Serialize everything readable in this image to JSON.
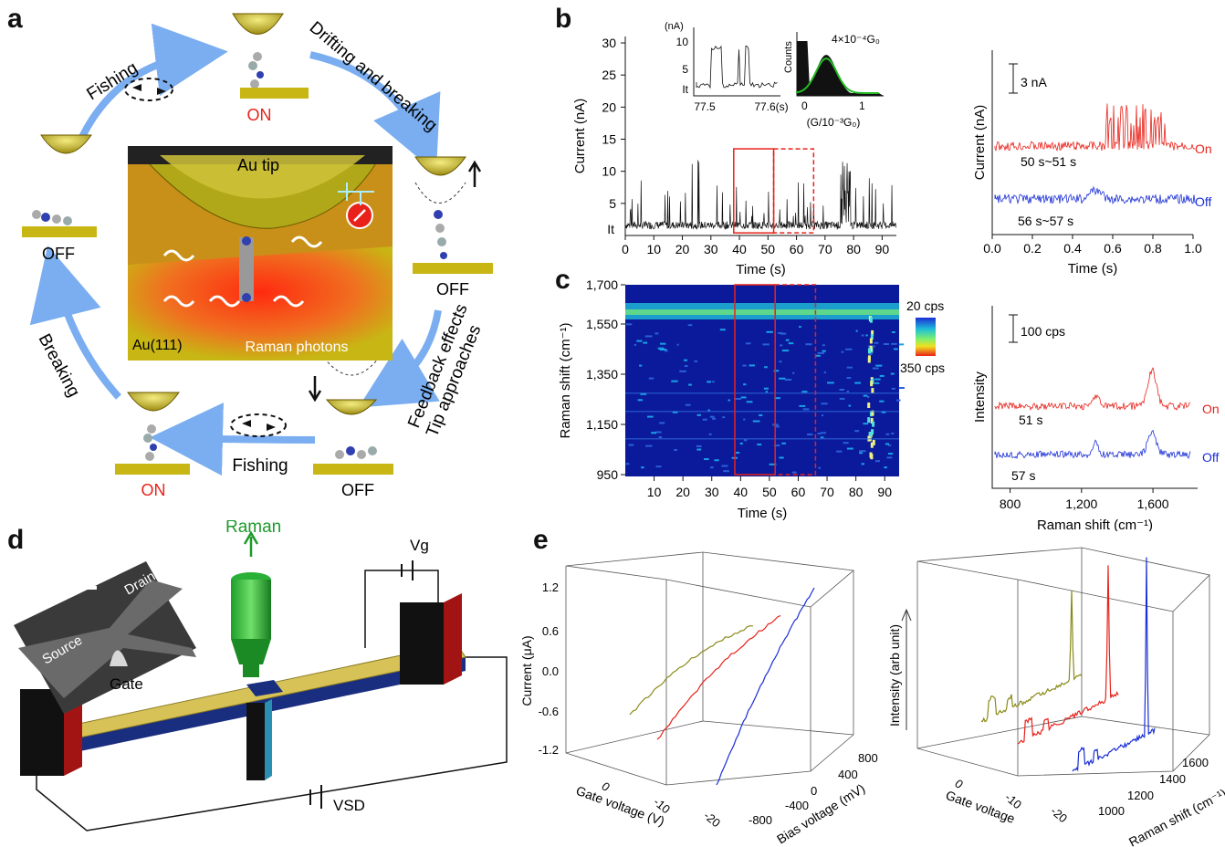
{
  "panels": {
    "a": "a",
    "b": "b",
    "c": "c",
    "d": "d",
    "e": "e"
  },
  "panel_a": {
    "fishing_top": "Fishing",
    "drifting": "Drifting and breaking",
    "on_top": "ON",
    "off_left": "OFF",
    "off_right": "OFF",
    "feedback": "Feedback effects",
    "tip_approaches": "Tip approaches",
    "breaking": "Breaking",
    "on_bottom": "ON",
    "fishing_bottom": "Fishing",
    "off_bottom": "OFF",
    "au_tip": "Au tip",
    "au111": "Au(111)",
    "raman_photons": "Raman photons",
    "colors": {
      "on": "#e8221a",
      "off": "#111111",
      "arrow": "#7aaef0",
      "gold": "#c8b614"
    }
  },
  "chart_data": [
    {
      "type": "line",
      "id": "b-left",
      "xlabel": "Time (s)",
      "ylabel": "Current (nA)",
      "x_ticks": [
        "0",
        "10",
        "20",
        "30",
        "40",
        "50",
        "60",
        "70",
        "80",
        "90"
      ],
      "y_ticks": [
        "5",
        "10",
        "15",
        "20",
        "25",
        "30"
      ],
      "y_baseline_label": "It",
      "xlim": [
        0,
        95
      ],
      "ylim": [
        0,
        31
      ],
      "boxes": [
        {
          "x0": 38,
          "x1": 52,
          "style": "solid"
        },
        {
          "x0": 52,
          "x1": 66,
          "style": "dashed"
        }
      ],
      "inset_trace": {
        "ylabel": "(nA)",
        "y_ticks": [
          "10",
          "5"
        ],
        "baseline": "It",
        "x_ticks": [
          "77.5",
          "77.6(s)"
        ]
      },
      "inset_hist": {
        "ylabel": "Counts",
        "annotation": "4×10⁻⁴G₀",
        "x_ticks": [
          "0",
          "1"
        ],
        "xlabel": "(G/10⁻³G₀)"
      }
    },
    {
      "type": "line",
      "id": "b-right",
      "xlabel": "Time (s)",
      "ylabel": "Current (nA)",
      "x_ticks": [
        "0.0",
        "0.2",
        "0.4",
        "0.6",
        "0.8",
        "1.0"
      ],
      "scale_bar": "3 nA",
      "series": [
        {
          "name": "On",
          "annotation": "50 s~51 s",
          "color": "#e8221a"
        },
        {
          "name": "Off",
          "annotation": "56 s~57 s",
          "color": "#1a2ed6"
        }
      ]
    },
    {
      "type": "heatmap",
      "id": "c-left",
      "xlabel": "Time (s)",
      "ylabel": "Raman shift (cm⁻¹)",
      "x_ticks": [
        "10",
        "20",
        "30",
        "40",
        "50",
        "60",
        "70",
        "80",
        "90"
      ],
      "y_ticks": [
        "1,700",
        "1,550",
        "1,350",
        "1,150",
        "950"
      ],
      "colorbar": {
        "min": "20 cps",
        "max": "350 cps"
      },
      "boxes": [
        {
          "x0": 38,
          "x1": 52,
          "style": "solid"
        },
        {
          "x0": 52,
          "x1": 66,
          "style": "dashed"
        }
      ]
    },
    {
      "type": "line",
      "id": "c-right",
      "xlabel": "Raman shift (cm⁻¹)",
      "ylabel": "Intensity",
      "x_ticks": [
        "800",
        "1,200",
        "1,600"
      ],
      "scale_bar": "100 cps",
      "series": [
        {
          "name": "On",
          "annotation": "51 s",
          "color": "#e8221a"
        },
        {
          "name": "Off",
          "annotation": "57 s",
          "color": "#1a2ed6"
        }
      ]
    },
    {
      "type": "line",
      "id": "e-left",
      "ylabel": "Current (μA)",
      "xlabel": "Gate voltage (V)",
      "zlabel": "Bias voltage (mV)",
      "y_ticks": [
        "1.2",
        "0.6",
        "0.0",
        "-0.6",
        "-1.2"
      ],
      "x_ticks": [
        "0",
        "-10",
        "-20"
      ],
      "z_ticks": [
        "800",
        "400",
        "0",
        "-400",
        "-800"
      ],
      "series_colors": [
        "#8a8a1a",
        "#e8221a",
        "#1a2ed6"
      ]
    },
    {
      "type": "line",
      "id": "e-right",
      "ylabel": "Intensity (arb unit)",
      "xlabel": "Gate voltage",
      "zlabel": "Raman shift (cm⁻¹)",
      "x_ticks": [
        "0",
        "-10",
        "-20"
      ],
      "z_ticks": [
        "1600",
        "1400",
        "1200",
        "1000"
      ],
      "series_colors": [
        "#8a8a1a",
        "#e8221a",
        "#1a2ed6"
      ]
    }
  ],
  "panel_d": {
    "raman": "Raman",
    "vg": "Vg",
    "vsd": "VSD",
    "source": "Source",
    "drain": "Drain",
    "gate": "Gate"
  }
}
